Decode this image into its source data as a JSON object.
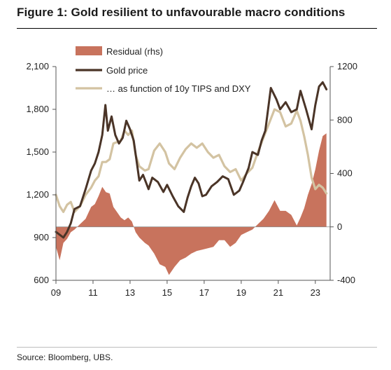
{
  "title": "Figure 1: Gold resilient to unfavourable macro conditions",
  "source": "Source: Bloomberg, UBS.",
  "chart_data": {
    "type": "line",
    "xlabel": "",
    "ylabel": "",
    "x_ticks": [
      "09",
      "11",
      "13",
      "15",
      "17",
      "19",
      "21",
      "23"
    ],
    "xlim": [
      2009.0,
      2023.8
    ],
    "ylim_left": [
      600,
      2100
    ],
    "yticks_left": [
      "600",
      "900",
      "1,200",
      "1,500",
      "1,800",
      "2,100"
    ],
    "ylim_right": [
      -400,
      1200
    ],
    "yticks_right": [
      "-400",
      "0",
      "400",
      "800",
      "1200"
    ],
    "legend_position": "top-left",
    "legend": [
      {
        "label": "Residual (rhs)",
        "kind": "area",
        "color": "#c8735d"
      },
      {
        "label": "Gold price",
        "kind": "line",
        "color": "#4a3427"
      },
      {
        "label": "… as function of 10y TIPS and DXY",
        "kind": "line",
        "color": "#d3c3a2"
      }
    ],
    "series": [
      {
        "name": "Gold price",
        "axis": "left",
        "color": "#4a3427",
        "x": [
          2009.0,
          2009.2,
          2009.4,
          2009.6,
          2009.8,
          2010.0,
          2010.3,
          2010.6,
          2010.9,
          2011.1,
          2011.3,
          2011.5,
          2011.67,
          2011.8,
          2012.0,
          2012.2,
          2012.4,
          2012.6,
          2012.8,
          2013.0,
          2013.2,
          2013.5,
          2013.7,
          2014.0,
          2014.2,
          2014.5,
          2014.8,
          2015.0,
          2015.3,
          2015.6,
          2015.9,
          2016.1,
          2016.3,
          2016.5,
          2016.7,
          2016.9,
          2017.1,
          2017.4,
          2017.7,
          2018.0,
          2018.3,
          2018.6,
          2018.9,
          2019.1,
          2019.4,
          2019.6,
          2019.9,
          2020.1,
          2020.3,
          2020.6,
          2020.9,
          2021.1,
          2021.4,
          2021.7,
          2022.0,
          2022.2,
          2022.5,
          2022.8,
          2023.0,
          2023.2,
          2023.4,
          2023.6
        ],
        "values": [
          940,
          920,
          900,
          940,
          1000,
          1100,
          1120,
          1240,
          1370,
          1420,
          1500,
          1620,
          1830,
          1650,
          1750,
          1620,
          1560,
          1600,
          1720,
          1660,
          1580,
          1300,
          1340,
          1240,
          1320,
          1290,
          1220,
          1270,
          1190,
          1120,
          1080,
          1180,
          1260,
          1320,
          1280,
          1190,
          1200,
          1260,
          1290,
          1330,
          1310,
          1200,
          1230,
          1290,
          1390,
          1500,
          1480,
          1580,
          1650,
          1950,
          1870,
          1800,
          1850,
          1780,
          1800,
          1930,
          1800,
          1660,
          1830,
          1960,
          1990,
          1940
        ]
      },
      {
        "name": "… as function of 10y TIPS and DXY",
        "axis": "left",
        "color": "#d3c3a2",
        "x": [
          2009.0,
          2009.2,
          2009.4,
          2009.6,
          2009.8,
          2010.0,
          2010.3,
          2010.6,
          2010.9,
          2011.1,
          2011.3,
          2011.5,
          2011.7,
          2011.9,
          2012.1,
          2012.3,
          2012.5,
          2012.7,
          2012.9,
          2013.1,
          2013.3,
          2013.5,
          2013.8,
          2014.0,
          2014.3,
          2014.6,
          2014.9,
          2015.1,
          2015.4,
          2015.7,
          2016.0,
          2016.3,
          2016.6,
          2016.9,
          2017.2,
          2017.5,
          2017.8,
          2018.1,
          2018.4,
          2018.7,
          2019.0,
          2019.3,
          2019.6,
          2019.9,
          2020.2,
          2020.5,
          2020.8,
          2021.1,
          2021.4,
          2021.7,
          2022.0,
          2022.2,
          2022.4,
          2022.6,
          2022.8,
          2023.0,
          2023.2,
          2023.4,
          2023.6
        ],
        "values": [
          1200,
          1120,
          1080,
          1130,
          1150,
          1080,
          1120,
          1200,
          1250,
          1300,
          1330,
          1430,
          1430,
          1450,
          1560,
          1570,
          1580,
          1650,
          1620,
          1650,
          1480,
          1400,
          1370,
          1380,
          1510,
          1560,
          1500,
          1420,
          1380,
          1460,
          1520,
          1560,
          1530,
          1560,
          1500,
          1460,
          1480,
          1400,
          1360,
          1380,
          1300,
          1350,
          1390,
          1500,
          1600,
          1700,
          1800,
          1780,
          1680,
          1700,
          1790,
          1720,
          1610,
          1480,
          1320,
          1240,
          1270,
          1250,
          1210
        ]
      },
      {
        "name": "Residual (rhs)",
        "axis": "right",
        "type": "area",
        "color": "#c8735d",
        "x": [
          2009.0,
          2009.2,
          2009.4,
          2009.6,
          2009.8,
          2010.0,
          2010.3,
          2010.6,
          2010.9,
          2011.1,
          2011.3,
          2011.5,
          2011.7,
          2011.9,
          2012.1,
          2012.3,
          2012.5,
          2012.7,
          2012.9,
          2013.1,
          2013.3,
          2013.5,
          2013.8,
          2014.0,
          2014.3,
          2014.6,
          2014.9,
          2015.1,
          2015.4,
          2015.7,
          2016.0,
          2016.3,
          2016.6,
          2016.9,
          2017.2,
          2017.5,
          2017.8,
          2018.1,
          2018.4,
          2018.7,
          2019.0,
          2019.3,
          2019.6,
          2019.9,
          2020.2,
          2020.5,
          2020.8,
          2021.1,
          2021.4,
          2021.7,
          2022.0,
          2022.2,
          2022.4,
          2022.6,
          2022.8,
          2023.0,
          2023.2,
          2023.4,
          2023.6
        ],
        "values": [
          -150,
          -250,
          -120,
          -90,
          -40,
          -20,
          20,
          60,
          150,
          170,
          230,
          300,
          260,
          250,
          150,
          110,
          70,
          50,
          70,
          40,
          -40,
          -80,
          -120,
          -140,
          -200,
          -280,
          -300,
          -360,
          -300,
          -250,
          -230,
          -200,
          -180,
          -170,
          -160,
          -150,
          -100,
          -100,
          -150,
          -120,
          -60,
          -40,
          -20,
          20,
          60,
          120,
          200,
          120,
          120,
          90,
          10,
          70,
          140,
          240,
          320,
          430,
          570,
          680,
          700
        ]
      }
    ]
  }
}
